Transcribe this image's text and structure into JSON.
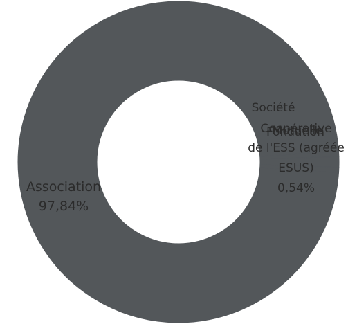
{
  "chart_data": {
    "type": "pie",
    "title": "",
    "donut": true,
    "slices": [
      {
        "label": "Association",
        "value": 97.84,
        "value_label": "97,84%",
        "color": "#53575a"
      },
      {
        "label": "Société commerciale de l'ESS (agréée ESUS)",
        "value": 0.54,
        "value_label": "0,54%",
        "color": "#53575a"
      },
      {
        "label": "Coopérative",
        "value": 1.08,
        "value_label": "",
        "color": "#53575a"
      },
      {
        "label": "Mutuelle",
        "value": 0.54,
        "value_label": "",
        "color": "#53575a"
      }
    ],
    "overlap_labels": [
      "Coopérative",
      "Mutuelle",
      "Fondation"
    ]
  }
}
